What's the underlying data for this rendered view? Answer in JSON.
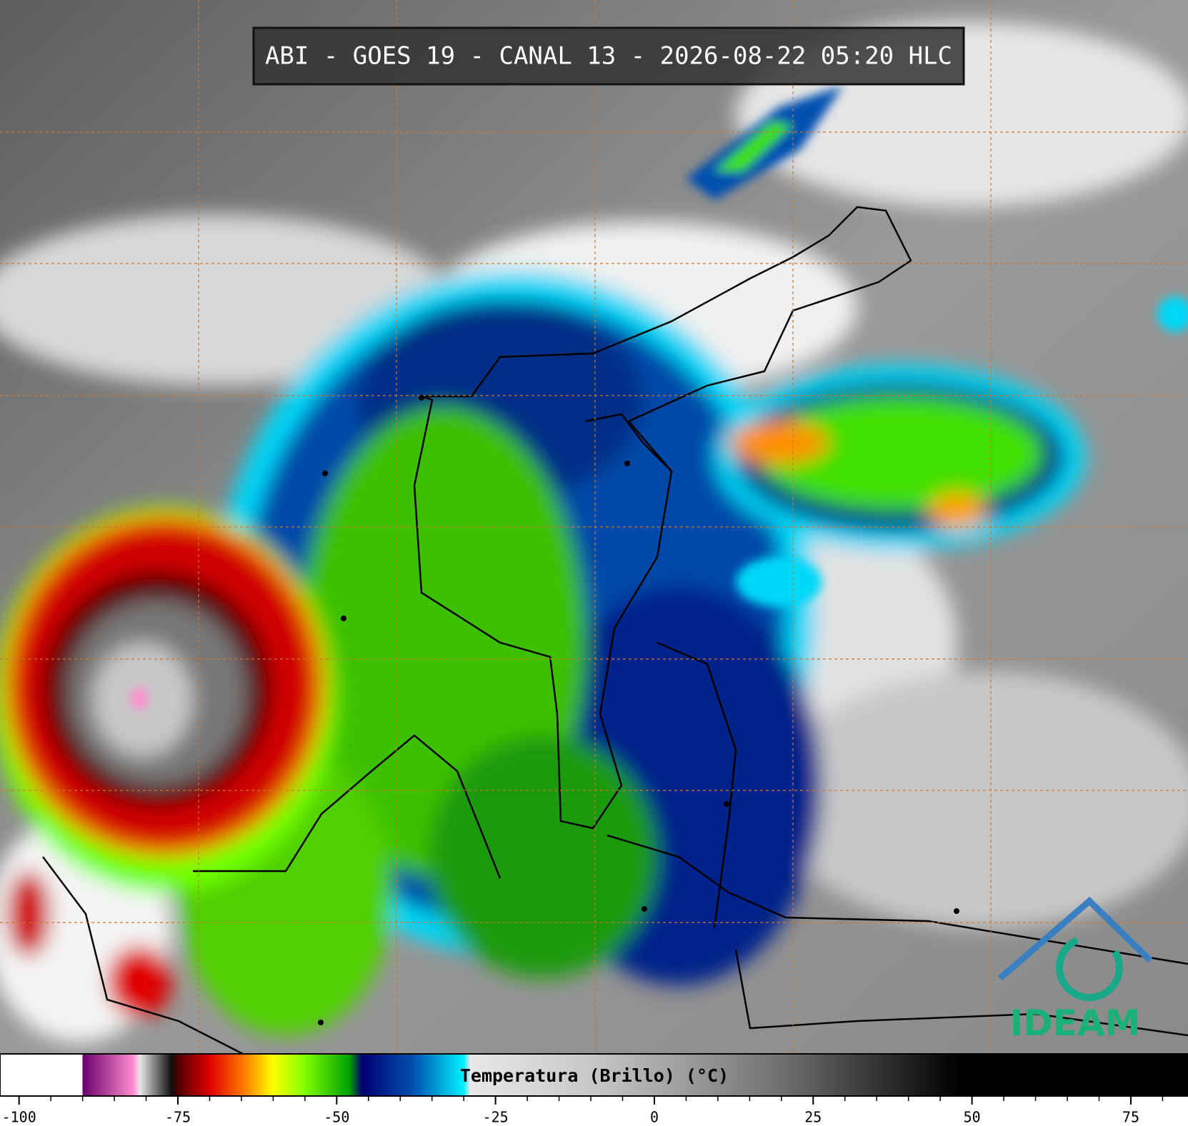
{
  "title": "ABI - GOES 19 - CANAL 13 - 2026-08-22 05:20 HLC",
  "logo": "IDEAM",
  "colorbar": {
    "label": "Temperatura (Brillo) (°C)",
    "lim": [
      -103,
      84
    ],
    "ticks": [
      -100,
      -75,
      -50,
      -25,
      0,
      25,
      50,
      75
    ],
    "stops": [
      {
        "value": -103,
        "color": "#ffffff"
      },
      {
        "value": -90,
        "color": "#ffffff"
      },
      {
        "value": -90,
        "color": "#6a006a"
      },
      {
        "value": -82,
        "color": "#ff8cd0"
      },
      {
        "value": -81,
        "color": "#e8e8e8"
      },
      {
        "value": -76,
        "color": "#101010"
      },
      {
        "value": -75,
        "color": "#500000"
      },
      {
        "value": -70,
        "color": "#e00000"
      },
      {
        "value": -65,
        "color": "#ff7000"
      },
      {
        "value": -60,
        "color": "#ffff00"
      },
      {
        "value": -55,
        "color": "#80ff00"
      },
      {
        "value": -48,
        "color": "#00a000"
      },
      {
        "value": -46,
        "color": "#000070"
      },
      {
        "value": -38,
        "color": "#0050b0"
      },
      {
        "value": -30,
        "color": "#00f0ff"
      },
      {
        "value": -29,
        "color": "#e8e8e8"
      },
      {
        "value": -10,
        "color": "#c8c8c8"
      },
      {
        "value": 20,
        "color": "#707070"
      },
      {
        "value": 48,
        "color": "#000000"
      },
      {
        "value": 84,
        "color": "#000000"
      }
    ]
  }
}
